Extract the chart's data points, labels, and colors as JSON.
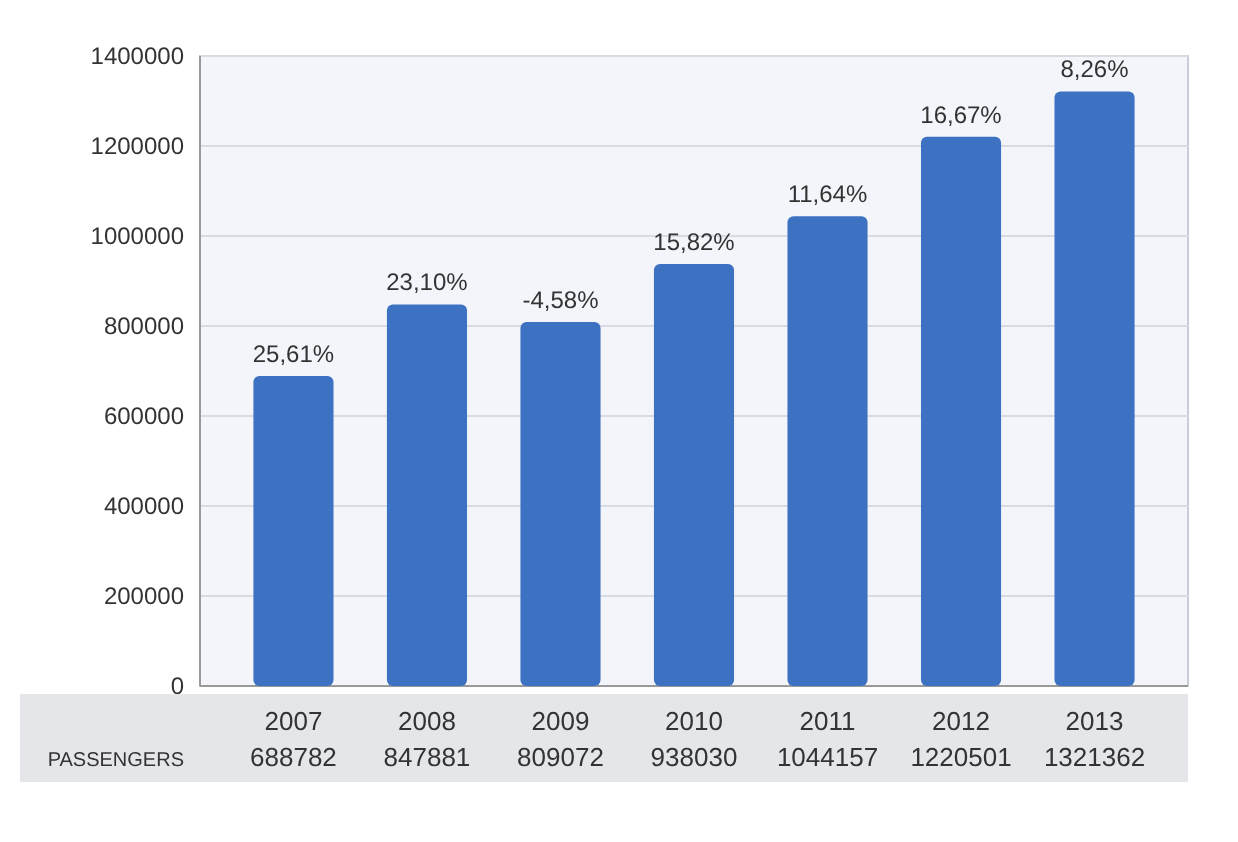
{
  "chart_data": {
    "type": "bar",
    "categories": [
      "2007",
      "2008",
      "2009",
      "2010",
      "2011",
      "2012",
      "2013"
    ],
    "values": [
      688782,
      847881,
      809072,
      938030,
      1044157,
      1220501,
      1321362
    ],
    "color": "#3d72c2",
    "data_labels": true,
    "ylim": [
      0,
      1400000
    ],
    "yticks": [
      0,
      200000,
      400000,
      600000,
      800000,
      1000000,
      1200000,
      1400000
    ],
    "grid": "y",
    "annotations": [
      {
        "text": "25,61%",
        "x": "2007",
        "y": 688782
      },
      {
        "text": "23,10%",
        "x": "2008",
        "y": 847881
      },
      {
        "text": "-4,58%",
        "x": "2009",
        "y": 809072
      },
      {
        "text": "15,82%",
        "x": "2010",
        "y": 938030
      },
      {
        "text": "11,64%",
        "x": "2011",
        "y": 1044157
      },
      {
        "text": "16,67%",
        "x": "2012",
        "y": 1220501
      },
      {
        "text": "8,26%",
        "x": "2013",
        "y": 1321362
      },
      "PASSENGERS"
    ]
  }
}
